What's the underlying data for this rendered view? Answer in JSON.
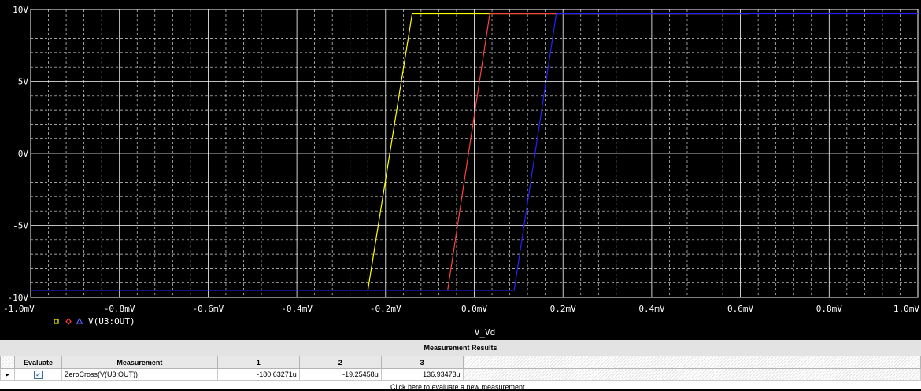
{
  "chart_data": {
    "type": "line",
    "title": "",
    "xlabel": "V_Vd",
    "ylabel": "",
    "xlim": [
      -1.0,
      1.0
    ],
    "ylim": [
      -10,
      10
    ],
    "x_unit": "mV",
    "y_unit": "V",
    "grid": true,
    "x_ticks": [
      "-1.0mV",
      "-0.8mV",
      "-0.6mV",
      "-0.4mV",
      "-0.2mV",
      "0.0mV",
      "0.2mV",
      "0.4mV",
      "0.6mV",
      "0.8mV",
      "1.0mV"
    ],
    "y_ticks": [
      "10V",
      "5V",
      "0V",
      "-5V",
      "-10V"
    ],
    "legend": {
      "placement": "bottom-left",
      "label": "V(U3:OUT)",
      "markers": [
        "square",
        "diamond",
        "triangle"
      ]
    },
    "series": [
      {
        "color": "#ffff00",
        "x": [
          -1.0,
          -0.24,
          -0.14,
          0.62
        ],
        "y": [
          -9.5,
          -9.5,
          9.7,
          9.7
        ]
      },
      {
        "color": "#ff4040",
        "x": [
          -0.68,
          -0.06,
          0.035,
          0.62
        ],
        "y": [
          -9.5,
          -9.5,
          9.7,
          9.7
        ]
      },
      {
        "color": "#2222ff",
        "x": [
          -1.0,
          0.09,
          0.185,
          1.0
        ],
        "y": [
          -9.5,
          -9.5,
          9.7,
          9.7
        ]
      }
    ]
  },
  "results": {
    "title": "Measurement Results",
    "headers": {
      "evaluate": "Evaluate",
      "measurement": "Measurement",
      "c1": "1",
      "c2": "2",
      "c3": "3"
    },
    "row": {
      "selector": "▸",
      "checked": "✓",
      "measurement": "ZeroCross(V(U3:OUT))",
      "v1": "-180.63271u",
      "v2": "-19.25458u",
      "v3": "136.93473u"
    },
    "hint": "Click here to evaluate a new measurement..."
  }
}
